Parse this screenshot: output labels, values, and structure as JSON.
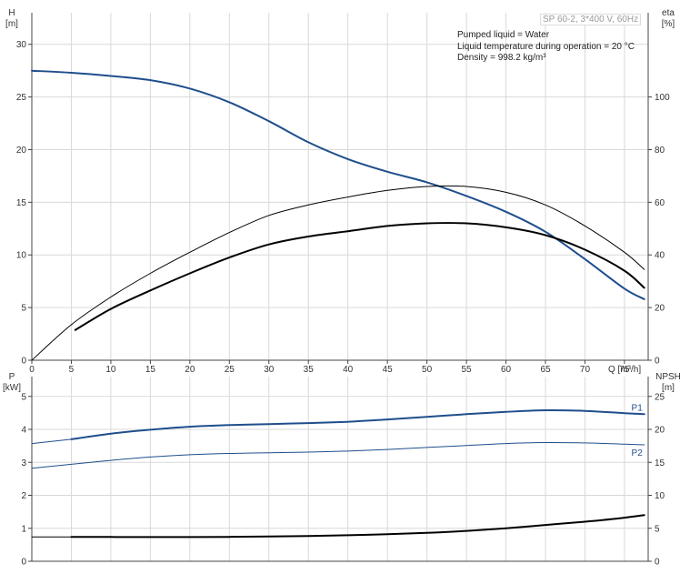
{
  "title_box": "SP 60-2, 3*400 V, 60Hz",
  "info_lines": [
    "Pumped liquid = Water",
    "Liquid temperature during operation = 20 °C",
    "Density = 998.2 kg/m³"
  ],
  "colors": {
    "blue": "#1f4e8c",
    "black": "#000000",
    "grid": "#d9d9d9"
  },
  "chart_data": [
    {
      "type": "line",
      "x_axis": {
        "label": "Q [m³/h]",
        "range": [
          0,
          78
        ],
        "ticks": [
          0,
          5,
          10,
          15,
          20,
          25,
          30,
          35,
          40,
          45,
          50,
          55,
          60,
          65,
          70,
          75
        ]
      },
      "y_left": {
        "label_line1": "H",
        "label_line2": "[m]",
        "range": [
          0,
          33
        ],
        "ticks": [
          0,
          5,
          10,
          15,
          20,
          25,
          30
        ]
      },
      "y_right": {
        "label_line1": "eta",
        "label_line2": "[%]",
        "range": [
          0,
          132
        ],
        "ticks": [
          0,
          20,
          40,
          60,
          80,
          100
        ]
      },
      "grid": true,
      "series": [
        {
          "axis": "left",
          "color": "#1f4e8c",
          "width": 2.0,
          "points": [
            [
              0,
              27.5
            ],
            [
              5,
              27.3
            ],
            [
              10,
              27.0
            ],
            [
              15,
              26.6
            ],
            [
              20,
              25.8
            ],
            [
              25,
              24.5
            ],
            [
              30,
              22.7
            ],
            [
              35,
              20.7
            ],
            [
              40,
              19.1
            ],
            [
              45,
              17.9
            ],
            [
              50,
              16.9
            ],
            [
              55,
              15.6
            ],
            [
              60,
              14.1
            ],
            [
              65,
              12.2
            ],
            [
              70,
              9.6
            ],
            [
              75,
              6.8
            ],
            [
              77.5,
              5.8
            ]
          ]
        },
        {
          "axis": "right",
          "color": "#000000",
          "width": 1.0,
          "points": [
            [
              0,
              0
            ],
            [
              5,
              13.5
            ],
            [
              10,
              24
            ],
            [
              15,
              33
            ],
            [
              20,
              41
            ],
            [
              25,
              48.5
            ],
            [
              30,
              55
            ],
            [
              35,
              59
            ],
            [
              40,
              62
            ],
            [
              45,
              64.5
            ],
            [
              50,
              66
            ],
            [
              55,
              66
            ],
            [
              60,
              63.8
            ],
            [
              65,
              59
            ],
            [
              70,
              51
            ],
            [
              75,
              41
            ],
            [
              77.5,
              34.5
            ]
          ]
        },
        {
          "axis": "right",
          "color": "#000000",
          "width": 2.0,
          "points": [
            [
              5.5,
              11.5
            ],
            [
              10,
              19.5
            ],
            [
              15,
              26.5
            ],
            [
              20,
              33
            ],
            [
              25,
              39
            ],
            [
              30,
              44
            ],
            [
              35,
              47
            ],
            [
              40,
              49
            ],
            [
              45,
              51
            ],
            [
              50,
              52
            ],
            [
              55,
              52
            ],
            [
              60,
              50.5
            ],
            [
              65,
              47.5
            ],
            [
              70,
              42
            ],
            [
              75,
              34
            ],
            [
              77.5,
              27.5
            ]
          ]
        }
      ]
    },
    {
      "type": "line",
      "x_axis": {
        "range": [
          0,
          78
        ]
      },
      "y_left": {
        "label_line1": "P",
        "label_line2": "[kW]",
        "range": [
          0,
          5.6
        ],
        "ticks": [
          0,
          1,
          2,
          3,
          4,
          5
        ]
      },
      "y_right": {
        "label_line1": "NPSH",
        "label_line2": "[m]",
        "range": [
          0,
          28
        ],
        "ticks": [
          0,
          5,
          10,
          15,
          20,
          25
        ]
      },
      "grid": true,
      "series": [
        {
          "name": "P1",
          "axis": "left",
          "color": "#1f4e8c",
          "width": 2.0,
          "points": [
            [
              5,
              3.7
            ],
            [
              10,
              3.87
            ],
            [
              15,
              3.99
            ],
            [
              20,
              4.08
            ],
            [
              25,
              4.13
            ],
            [
              30,
              4.16
            ],
            [
              35,
              4.19
            ],
            [
              40,
              4.23
            ],
            [
              45,
              4.3
            ],
            [
              50,
              4.38
            ],
            [
              55,
              4.46
            ],
            [
              60,
              4.53
            ],
            [
              65,
              4.58
            ],
            [
              70,
              4.56
            ],
            [
              75,
              4.49
            ],
            [
              77.5,
              4.46
            ]
          ]
        },
        {
          "axis": "left",
          "color": "#1f4e8c",
          "width": 1.0,
          "points": [
            [
              0,
              3.57
            ],
            [
              5,
              3.7
            ]
          ]
        },
        {
          "name": "P2",
          "axis": "left",
          "color": "#1f4e8c",
          "width": 1.0,
          "points": [
            [
              0,
              2.82
            ],
            [
              5,
              2.94
            ],
            [
              10,
              3.06
            ],
            [
              15,
              3.16
            ],
            [
              20,
              3.23
            ],
            [
              25,
              3.27
            ],
            [
              30,
              3.29
            ],
            [
              35,
              3.31
            ],
            [
              40,
              3.34
            ],
            [
              45,
              3.39
            ],
            [
              50,
              3.45
            ],
            [
              55,
              3.51
            ],
            [
              60,
              3.57
            ],
            [
              65,
              3.6
            ],
            [
              70,
              3.59
            ],
            [
              75,
              3.55
            ],
            [
              77.5,
              3.53
            ]
          ]
        },
        {
          "axis": "right",
          "color": "#000000",
          "width": 2.0,
          "points": [
            [
              5,
              3.7
            ],
            [
              10,
              3.68
            ],
            [
              15,
              3.67
            ],
            [
              20,
              3.67
            ],
            [
              25,
              3.69
            ],
            [
              30,
              3.75
            ],
            [
              35,
              3.83
            ],
            [
              40,
              3.95
            ],
            [
              45,
              4.1
            ],
            [
              50,
              4.3
            ],
            [
              55,
              4.6
            ],
            [
              60,
              5.0
            ],
            [
              65,
              5.5
            ],
            [
              70,
              6.0
            ],
            [
              75,
              6.6
            ],
            [
              77.5,
              7.0
            ]
          ]
        },
        {
          "axis": "right",
          "color": "#000000",
          "width": 1.0,
          "points": [
            [
              0,
              3.7
            ],
            [
              5,
              3.7
            ]
          ]
        }
      ]
    }
  ]
}
